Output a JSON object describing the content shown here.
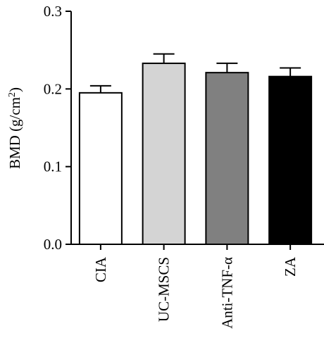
{
  "chart_data": {
    "type": "bar",
    "ylabel_main": "BMD (g/cm",
    "ylabel_sup": "2",
    "ylabel_close": ")",
    "ylim": [
      0.0,
      0.3
    ],
    "yticks": [
      "0.0",
      "0.1",
      "0.2",
      "0.3"
    ],
    "categories": [
      "CIA",
      "UC-MSCS",
      "Anti-TNF-α",
      "ZA"
    ],
    "values": [
      0.195,
      0.233,
      0.221,
      0.216
    ],
    "errors": [
      0.009,
      0.012,
      0.012,
      0.011
    ],
    "colors": [
      "#ffffff",
      "#d4d4d4",
      "#808080",
      "#000000"
    ],
    "grid": false
  }
}
